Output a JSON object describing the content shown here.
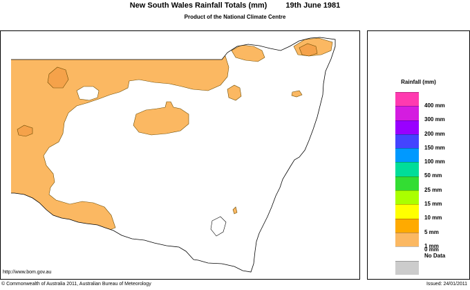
{
  "header": {
    "title": "New South Wales Rainfall Totals (mm)",
    "date": "19th June 1981",
    "subtitle": "Product of the National Climate Centre"
  },
  "map": {
    "region": "New South Wales",
    "colors": {
      "land": "#ffffff",
      "rain_1_5": "#fbb862",
      "outline": "#000000"
    }
  },
  "legend": {
    "title": "Rainfall (mm)",
    "items": [
      {
        "label": "400 mm",
        "color": "#ff3ab0"
      },
      {
        "label": "300 mm",
        "color": "#d41ce0"
      },
      {
        "label": "200 mm",
        "color": "#9900ff"
      },
      {
        "label": "150 mm",
        "color": "#4444ff"
      },
      {
        "label": "100 mm",
        "color": "#0099ff"
      },
      {
        "label": "50 mm",
        "color": "#00dd99"
      },
      {
        "label": "25 mm",
        "color": "#33dd33"
      },
      {
        "label": "15 mm",
        "color": "#aaff00"
      },
      {
        "label": "10 mm",
        "color": "#ffff00"
      },
      {
        "label": "5 mm",
        "color": "#ffaa00"
      },
      {
        "label": "1 mm",
        "color": "#fbb862"
      },
      {
        "label": "0 mm",
        "color": "#ffffff"
      }
    ],
    "nodata": {
      "label": "No Data",
      "color": "#cccccc"
    }
  },
  "footer": {
    "url": "http://www.bom.gov.au",
    "copyright": "© Commonwealth of Australia 2011, Australian Bureau of Meteorology",
    "issued": "Issued: 24/01/2011"
  }
}
